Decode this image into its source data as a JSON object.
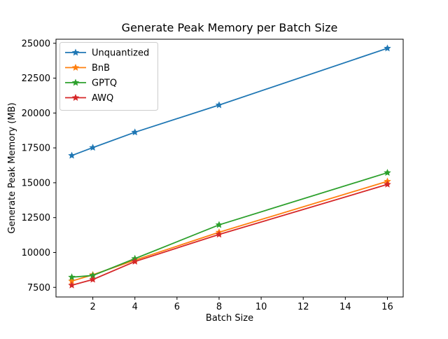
{
  "chart_data": {
    "type": "line",
    "title": "Generate Peak Memory per Batch Size",
    "xlabel": "Batch Size",
    "ylabel": "Generate Peak Memory (MB)",
    "x": [
      1,
      2,
      4,
      8,
      16
    ],
    "series": [
      {
        "name": "Unquantized",
        "color": "#1f77b4",
        "marker": "star",
        "values": [
          16950,
          17520,
          18620,
          20570,
          24640
        ]
      },
      {
        "name": "BnB",
        "color": "#ff7f0e",
        "marker": "star",
        "values": [
          7950,
          8400,
          9450,
          11450,
          15100
        ]
      },
      {
        "name": "GPTQ",
        "color": "#2ca02c",
        "marker": "star",
        "values": [
          8230,
          8350,
          9560,
          11980,
          15720
        ]
      },
      {
        "name": "AWQ",
        "color": "#d62728",
        "marker": "star",
        "values": [
          7650,
          8060,
          9350,
          11290,
          14880
        ]
      }
    ],
    "xticks": [
      2,
      4,
      6,
      8,
      10,
      12,
      14,
      16
    ],
    "yticks": [
      7500,
      10000,
      12500,
      15000,
      17500,
      20000,
      22500,
      25000
    ],
    "xlim": [
      0.25,
      16.75
    ],
    "ylim": [
      6810,
      25290
    ],
    "grid": false,
    "legend_position": "upper left",
    "axis_color": "#000000",
    "background_color": "#ffffff"
  }
}
